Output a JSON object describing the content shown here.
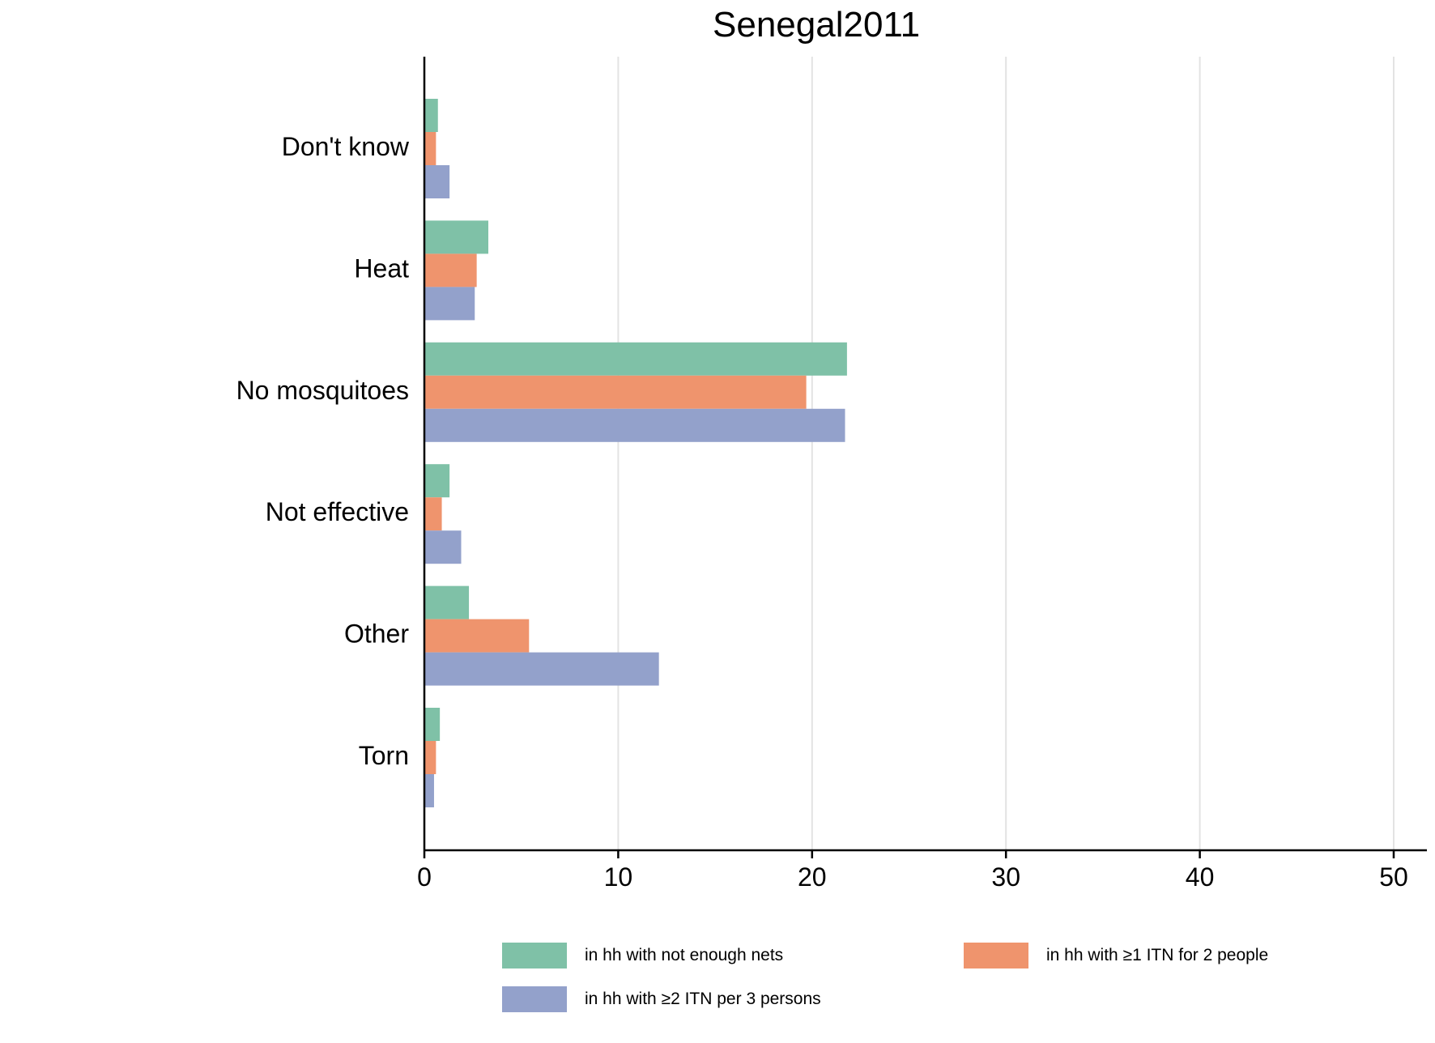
{
  "chart_data": {
    "type": "bar",
    "orientation": "horizontal",
    "title": "Senegal2011",
    "xlabel": "",
    "ylabel": "",
    "categories": [
      "Don't know",
      "Heat",
      "No mosquitoes",
      "Not effective",
      "Other",
      "Torn"
    ],
    "series": [
      {
        "name": "in hh with not enough nets",
        "color": "#7fc1a7",
        "values": [
          0.7,
          3.3,
          21.8,
          1.3,
          2.3,
          0.8
        ]
      },
      {
        "name": "in hh with ≥1 ITN for 2 people",
        "color": "#ef946d",
        "values": [
          0.6,
          2.7,
          19.7,
          0.9,
          5.4,
          0.6
        ]
      },
      {
        "name": "in hh with ≥2 ITN per 3 persons",
        "color": "#93a1cb",
        "values": [
          1.3,
          2.6,
          21.7,
          1.9,
          12.1,
          0.5
        ]
      }
    ],
    "xlim": [
      0,
      50
    ],
    "xticks": [
      "0",
      "10",
      "20",
      "30",
      "40",
      "50"
    ],
    "grid": true,
    "legend_position": "bottom"
  }
}
